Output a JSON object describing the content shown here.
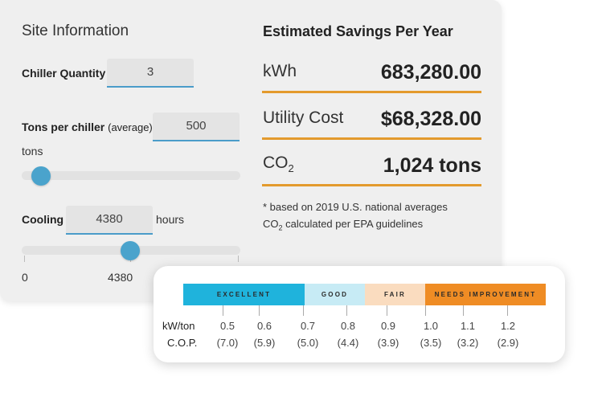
{
  "site": {
    "title": "Site Information",
    "chiller_quantity_label": "Chiller Quantity",
    "chiller_quantity_value": "3",
    "tons_label": "Tons per chiller",
    "tons_sub": "(average)",
    "tons_value": "500",
    "tons_unit": "tons",
    "cooling_label": "Cooling",
    "cooling_value": "4380",
    "cooling_unit": "hours",
    "cooling_min": "0",
    "cooling_current": "4380"
  },
  "savings": {
    "title": "Estimated Savings Per Year",
    "rows": [
      {
        "label": "kWh",
        "value": "683,280.00"
      },
      {
        "label": "Utility Cost",
        "value": "$68,328.00"
      },
      {
        "label": "CO",
        "label_sub": "2",
        "value": "1,024 tons"
      }
    ],
    "footnote1": "* based on 2019 U.S. national averages",
    "footnote2_pre": "CO",
    "footnote2_sub": "2",
    "footnote2_post": " calculated per EPA guidelines"
  },
  "efficiency": {
    "segments": [
      {
        "label": "EXCELLENT",
        "color": "#1fb3dc"
      },
      {
        "label": "GOOD",
        "color": "#c7ebf5"
      },
      {
        "label": "FAIR",
        "color": "#fadcbf"
      },
      {
        "label": "NEEDS IMPROVEMENT",
        "color": "#ef8c24"
      }
    ],
    "kw_label": "kW/ton",
    "cop_label": "C.O.P.",
    "kw_values": [
      "0.5",
      "0.6",
      "0.7",
      "0.8",
      "0.9",
      "1.0",
      "1.1",
      "1.2"
    ],
    "cop_values": [
      "(7.0)",
      "(5.9)",
      "(5.0)",
      "(4.4)",
      "(3.9)",
      "(3.5)",
      "(3.2)",
      "(2.9)"
    ]
  }
}
